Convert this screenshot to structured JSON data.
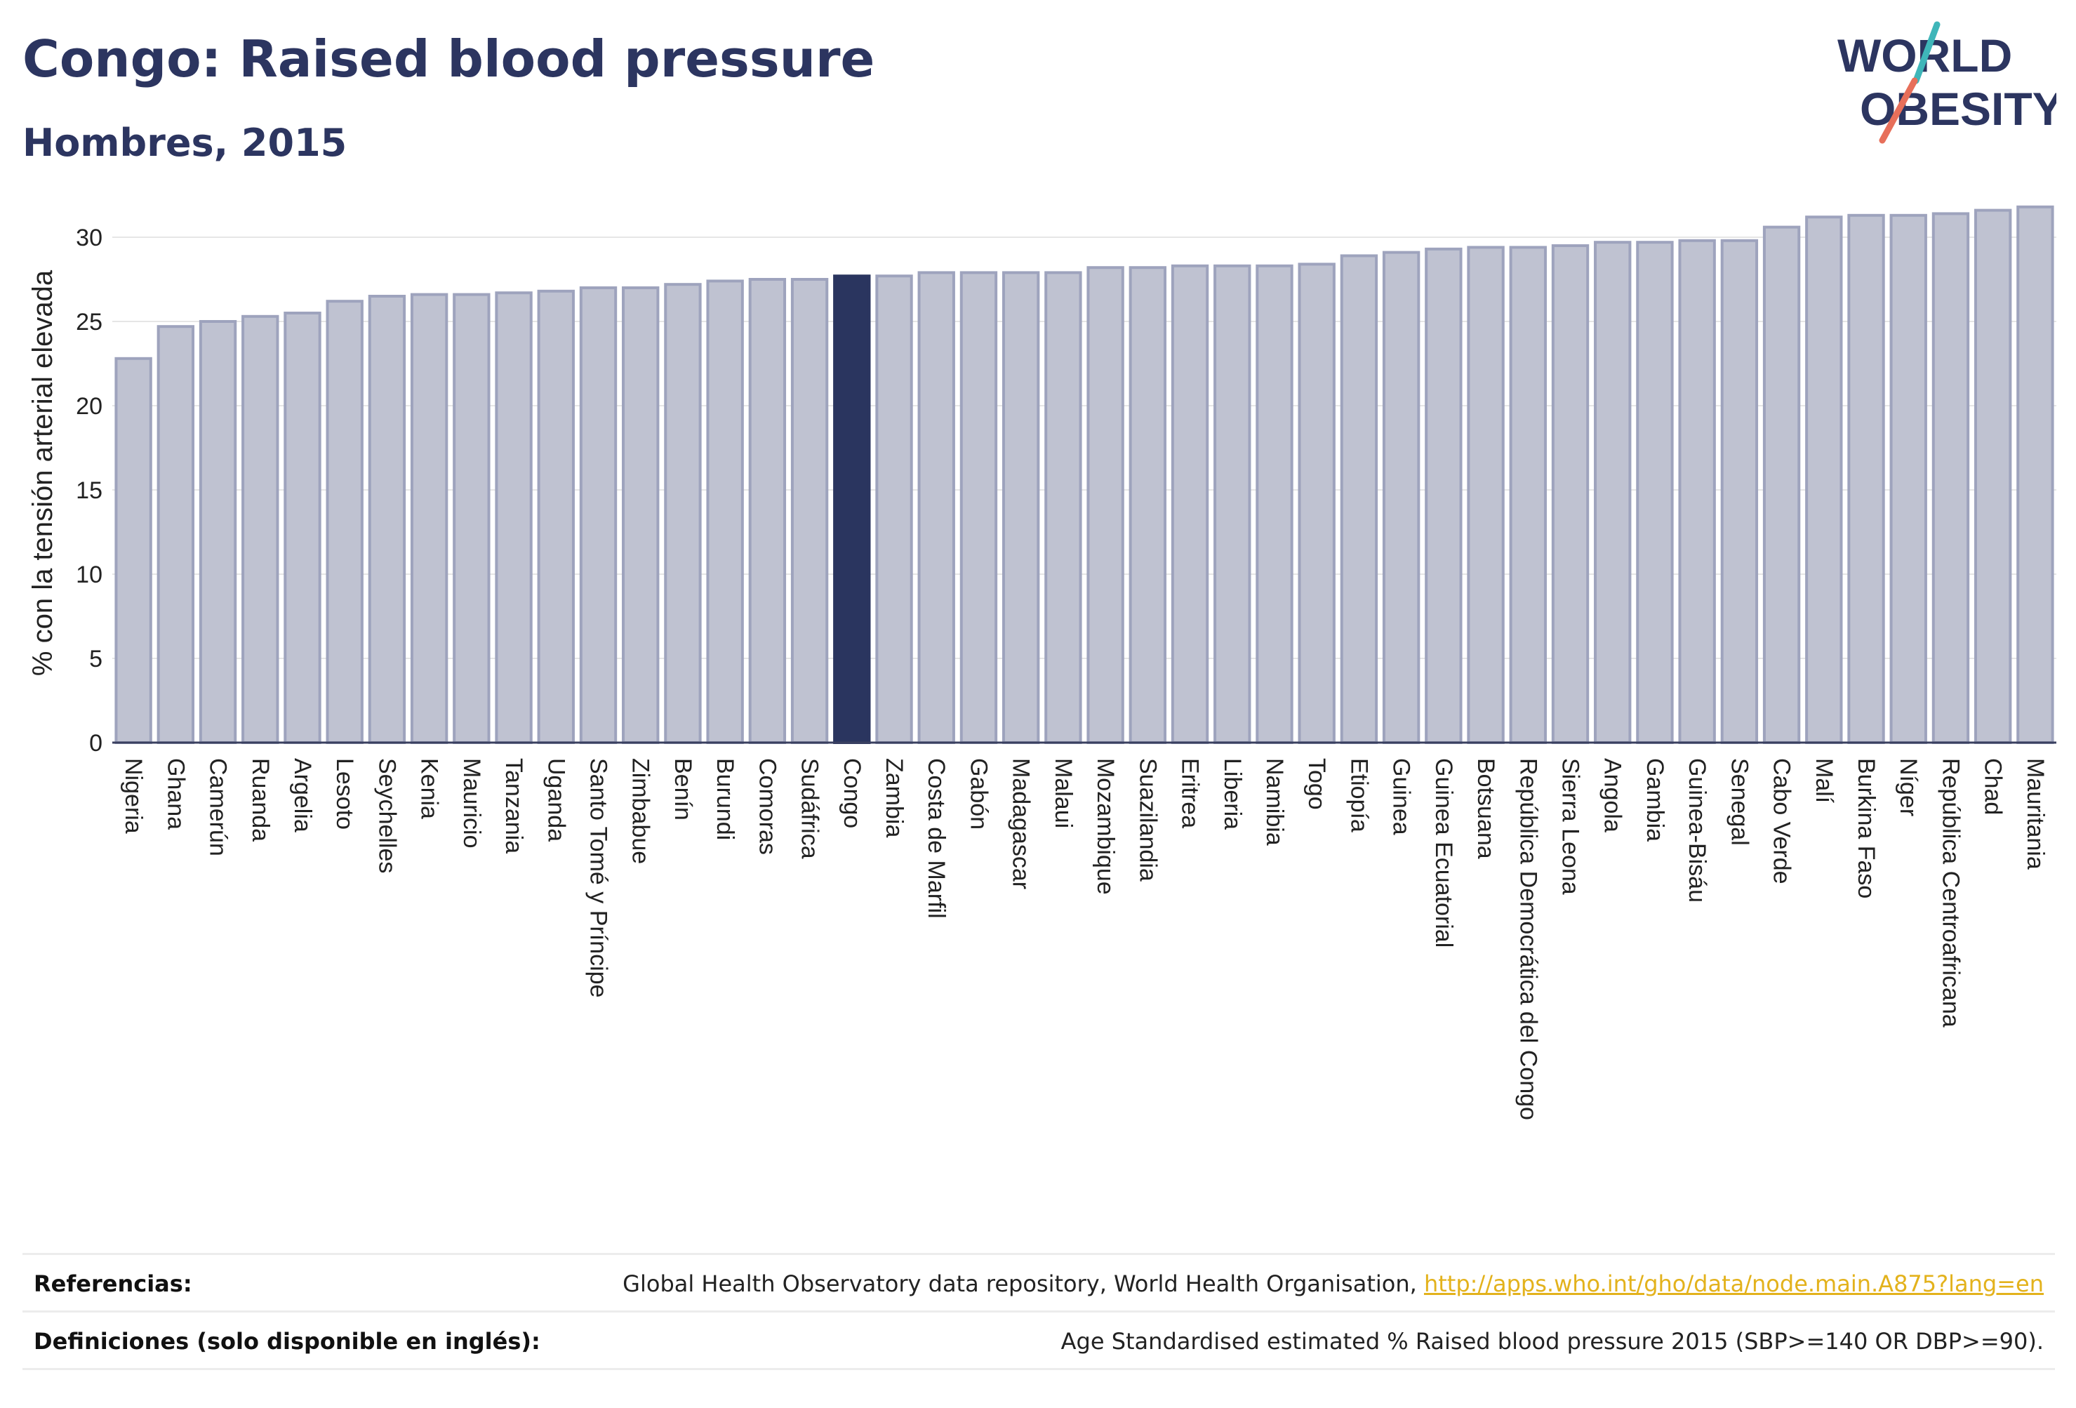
{
  "title": "Congo: Raised blood pressure",
  "subtitle": "Hombres, 2015",
  "logo": {
    "line1": "WORLD",
    "line2": "OBESITY"
  },
  "colors": {
    "title": "#2c3560",
    "bar": "#bfc2d1",
    "bar_border": "#9ea3bd",
    "highlight": "#2a355f",
    "link": "#e3b21c"
  },
  "footer": {
    "references_label": "Referencias:",
    "references_text": "Global Health Observatory data repository, World Health Organisation,",
    "references_link": "http://apps.who.int/gho/data/node.main.A875?lang=en",
    "definitions_label": "Definiciones (solo disponible en inglés):",
    "definitions_text": "Age Standardised estimated % Raised blood pressure 2015 (SBP>=140 OR DBP>=90)."
  },
  "chart_data": {
    "type": "bar",
    "title": "Congo: Raised blood pressure",
    "subtitle": "Hombres, 2015",
    "xlabel": "",
    "ylabel": "% con la tensión arterial elevada",
    "ylim": [
      0,
      32
    ],
    "yticks": [
      0,
      5,
      10,
      15,
      20,
      25,
      30
    ],
    "grid": true,
    "highlight": "Congo",
    "categories": [
      "Nigeria",
      "Ghana",
      "Camerún",
      "Ruanda",
      "Argelia",
      "Lesoto",
      "Seychelles",
      "Kenia",
      "Mauricio",
      "Tanzania",
      "Uganda",
      "Santo Tomé y Príncipe",
      "Zimbabue",
      "Benín",
      "Burundi",
      "Comoras",
      "Sudáfrica",
      "Congo",
      "Zambia",
      "Costa de Marfil",
      "Gabón",
      "Madagascar",
      "Malaui",
      "Mozambique",
      "Suazilandia",
      "Eritrea",
      "Liberia",
      "Namibia",
      "Togo",
      "Etiopía",
      "Guinea",
      "Guinea Ecuatorial",
      "Botsuana",
      "República Democrática del Congo",
      "Sierra Leona",
      "Angola",
      "Gambia",
      "Guinea-Bisáu",
      "Senegal",
      "Cabo Verde",
      "Malí",
      "Burkina Faso",
      "Níger",
      "República Centroafricana",
      "Chad",
      "Mauritania"
    ],
    "values": [
      22.8,
      24.7,
      25.0,
      25.3,
      25.5,
      26.2,
      26.5,
      26.6,
      26.6,
      26.7,
      26.8,
      27.0,
      27.0,
      27.2,
      27.4,
      27.5,
      27.5,
      27.7,
      27.7,
      27.9,
      27.9,
      27.9,
      27.9,
      28.2,
      28.2,
      28.3,
      28.3,
      28.3,
      28.4,
      28.9,
      29.1,
      29.3,
      29.4,
      29.4,
      29.5,
      29.7,
      29.7,
      29.8,
      29.8,
      30.6,
      31.2,
      31.3,
      31.3,
      31.4,
      31.6,
      31.8
    ]
  }
}
